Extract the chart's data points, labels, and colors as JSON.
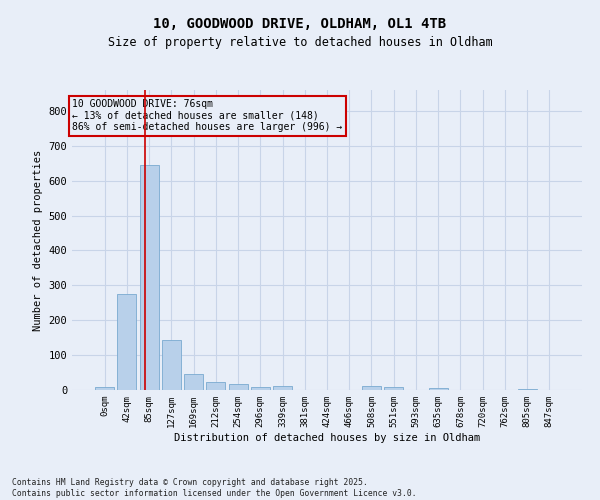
{
  "title1": "10, GOODWOOD DRIVE, OLDHAM, OL1 4TB",
  "title2": "Size of property relative to detached houses in Oldham",
  "xlabel": "Distribution of detached houses by size in Oldham",
  "ylabel": "Number of detached properties",
  "footnote": "Contains HM Land Registry data © Crown copyright and database right 2025.\nContains public sector information licensed under the Open Government Licence v3.0.",
  "bar_labels": [
    "0sqm",
    "42sqm",
    "85sqm",
    "127sqm",
    "169sqm",
    "212sqm",
    "254sqm",
    "296sqm",
    "339sqm",
    "381sqm",
    "424sqm",
    "466sqm",
    "508sqm",
    "551sqm",
    "593sqm",
    "635sqm",
    "678sqm",
    "720sqm",
    "762sqm",
    "805sqm",
    "847sqm"
  ],
  "bar_values": [
    8,
    275,
    645,
    143,
    47,
    23,
    17,
    10,
    12,
    0,
    0,
    0,
    12,
    8,
    0,
    5,
    0,
    0,
    0,
    4,
    0
  ],
  "bar_color": "#b8d0ea",
  "bar_edge_color": "#7aaad0",
  "grid_color": "#c8d4e8",
  "background_color": "#e8eef8",
  "vline_x": 1.82,
  "vline_color": "#cc0000",
  "annotation_text": "10 GOODWOOD DRIVE: 76sqm\n← 13% of detached houses are smaller (148)\n86% of semi-detached houses are larger (996) →",
  "annotation_box_color": "#cc0000",
  "ylim": [
    0,
    860
  ],
  "yticks": [
    0,
    100,
    200,
    300,
    400,
    500,
    600,
    700,
    800
  ]
}
